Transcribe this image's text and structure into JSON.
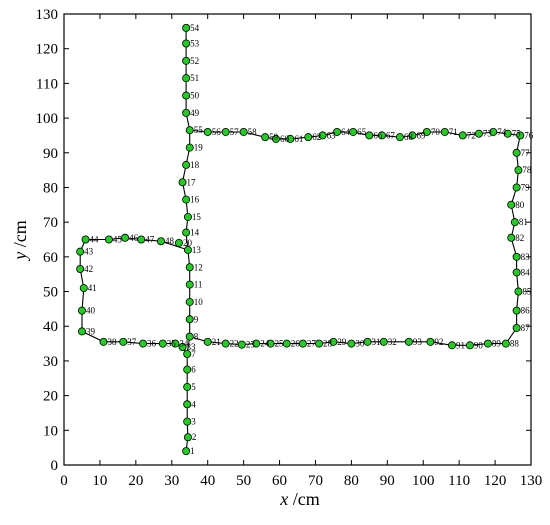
{
  "colors": {
    "point_fill": "#22cc22",
    "point_stroke": "#000000",
    "line": "#000000",
    "frame": "#000000"
  },
  "chart_data": {
    "type": "scatter",
    "title": "",
    "xlabel": {
      "var": "x",
      "unit": " /cm"
    },
    "ylabel": {
      "var": "y",
      "unit": " /cm"
    },
    "xlim": [
      0,
      130
    ],
    "ylim": [
      0,
      130
    ],
    "xticks": [
      "0",
      "10",
      "20",
      "30",
      "40",
      "50",
      "60",
      "70",
      "80",
      "90",
      "100",
      "110",
      "120",
      "130"
    ],
    "yticks": [
      "0",
      "10",
      "20",
      "30",
      "40",
      "50",
      "60",
      "70",
      "80",
      "90",
      "100",
      "110",
      "120",
      "130"
    ],
    "grid": false,
    "legend": "none",
    "points": [
      {
        "id": "1",
        "x": 34,
        "y": 4
      },
      {
        "id": "2",
        "x": 34.5,
        "y": 8
      },
      {
        "id": "3",
        "x": 34.3,
        "y": 12.5
      },
      {
        "id": "4",
        "x": 34.3,
        "y": 17.5
      },
      {
        "id": "5",
        "x": 34.3,
        "y": 22.5
      },
      {
        "id": "6",
        "x": 34.3,
        "y": 27.5
      },
      {
        "id": "7",
        "x": 34.3,
        "y": 32
      },
      {
        "id": "8",
        "x": 35,
        "y": 37
      },
      {
        "id": "9",
        "x": 35,
        "y": 42
      },
      {
        "id": "10",
        "x": 35,
        "y": 47
      },
      {
        "id": "11",
        "x": 35,
        "y": 52
      },
      {
        "id": "12",
        "x": 35,
        "y": 57
      },
      {
        "id": "13",
        "x": 34.5,
        "y": 62
      },
      {
        "id": "14",
        "x": 34,
        "y": 67
      },
      {
        "id": "15",
        "x": 34.5,
        "y": 71.5
      },
      {
        "id": "16",
        "x": 34,
        "y": 76.5
      },
      {
        "id": "17",
        "x": 33,
        "y": 81.5
      },
      {
        "id": "18",
        "x": 34,
        "y": 86.5
      },
      {
        "id": "19",
        "x": 35,
        "y": 91.5
      },
      {
        "id": "20",
        "x": 32,
        "y": 64
      },
      {
        "id": "21",
        "x": 40,
        "y": 35.5
      },
      {
        "id": "22",
        "x": 45,
        "y": 35
      },
      {
        "id": "23",
        "x": 49.5,
        "y": 34.7
      },
      {
        "id": "24",
        "x": 53.5,
        "y": 35
      },
      {
        "id": "25",
        "x": 57.5,
        "y": 35
      },
      {
        "id": "26",
        "x": 62,
        "y": 35
      },
      {
        "id": "27",
        "x": 66.5,
        "y": 35
      },
      {
        "id": "28",
        "x": 71,
        "y": 35
      },
      {
        "id": "29",
        "x": 75,
        "y": 35.5
      },
      {
        "id": "30",
        "x": 80,
        "y": 35
      },
      {
        "id": "31",
        "x": 84.5,
        "y": 35.5
      },
      {
        "id": "32",
        "x": 89,
        "y": 35.5
      },
      {
        "id": "33",
        "x": 33,
        "y": 34
      },
      {
        "id": "34",
        "x": 31,
        "y": 35
      },
      {
        "id": "35",
        "x": 27.5,
        "y": 35
      },
      {
        "id": "36",
        "x": 22,
        "y": 35
      },
      {
        "id": "37",
        "x": 16.5,
        "y": 35.5
      },
      {
        "id": "38",
        "x": 11,
        "y": 35.5
      },
      {
        "id": "39",
        "x": 5,
        "y": 38.5
      },
      {
        "id": "40",
        "x": 5,
        "y": 44.5
      },
      {
        "id": "41",
        "x": 5.5,
        "y": 51
      },
      {
        "id": "42",
        "x": 4.5,
        "y": 56.5
      },
      {
        "id": "43",
        "x": 4.5,
        "y": 61.5
      },
      {
        "id": "44",
        "x": 6,
        "y": 65
      },
      {
        "id": "45",
        "x": 12.5,
        "y": 65
      },
      {
        "id": "46",
        "x": 17,
        "y": 65.5
      },
      {
        "id": "47",
        "x": 21.5,
        "y": 65
      },
      {
        "id": "48",
        "x": 27,
        "y": 64.5
      },
      {
        "id": "49",
        "x": 34,
        "y": 101.5
      },
      {
        "id": "50",
        "x": 34,
        "y": 106.5
      },
      {
        "id": "51",
        "x": 34,
        "y": 111.5
      },
      {
        "id": "52",
        "x": 34,
        "y": 116.5
      },
      {
        "id": "53",
        "x": 34,
        "y": 121.5
      },
      {
        "id": "54",
        "x": 34,
        "y": 126
      },
      {
        "id": "55",
        "x": 35,
        "y": 96.5
      },
      {
        "id": "56",
        "x": 40,
        "y": 96
      },
      {
        "id": "57",
        "x": 45,
        "y": 96
      },
      {
        "id": "58",
        "x": 50,
        "y": 96
      },
      {
        "id": "59",
        "x": 56,
        "y": 94.5
      },
      {
        "id": "60",
        "x": 59,
        "y": 94
      },
      {
        "id": "61",
        "x": 63,
        "y": 94
      },
      {
        "id": "62",
        "x": 68,
        "y": 94.5
      },
      {
        "id": "63",
        "x": 72,
        "y": 95
      },
      {
        "id": "64",
        "x": 76,
        "y": 96
      },
      {
        "id": "65",
        "x": 80.5,
        "y": 96
      },
      {
        "id": "66",
        "x": 85,
        "y": 95
      },
      {
        "id": "67",
        "x": 88.5,
        "y": 95
      },
      {
        "id": "68",
        "x": 93.5,
        "y": 94.5
      },
      {
        "id": "69",
        "x": 97,
        "y": 95
      },
      {
        "id": "70",
        "x": 101,
        "y": 96
      },
      {
        "id": "71",
        "x": 106,
        "y": 96
      },
      {
        "id": "72",
        "x": 111,
        "y": 95
      },
      {
        "id": "73",
        "x": 115.5,
        "y": 95.5
      },
      {
        "id": "74",
        "x": 119.5,
        "y": 96
      },
      {
        "id": "75",
        "x": 123.5,
        "y": 95.5
      },
      {
        "id": "76",
        "x": 127,
        "y": 95
      },
      {
        "id": "77",
        "x": 126,
        "y": 90
      },
      {
        "id": "78",
        "x": 126.5,
        "y": 85
      },
      {
        "id": "79",
        "x": 126,
        "y": 80
      },
      {
        "id": "80",
        "x": 124.5,
        "y": 75
      },
      {
        "id": "81",
        "x": 125.5,
        "y": 70
      },
      {
        "id": "82",
        "x": 124.5,
        "y": 65.5
      },
      {
        "id": "83",
        "x": 126,
        "y": 60
      },
      {
        "id": "84",
        "x": 126,
        "y": 55.5
      },
      {
        "id": "85",
        "x": 126.5,
        "y": 50
      },
      {
        "id": "86",
        "x": 126,
        "y": 44.5
      },
      {
        "id": "87",
        "x": 126,
        "y": 39.5
      },
      {
        "id": "88",
        "x": 123,
        "y": 35
      },
      {
        "id": "89",
        "x": 118,
        "y": 35
      },
      {
        "id": "90",
        "x": 113,
        "y": 34.5
      },
      {
        "id": "91",
        "x": 108,
        "y": 34.5
      },
      {
        "id": "92",
        "x": 102,
        "y": 35.5
      },
      {
        "id": "93",
        "x": 96,
        "y": 35.5
      }
    ],
    "path_order": [
      "1",
      "2",
      "3",
      "4",
      "5",
      "6",
      "7",
      "8",
      "9",
      "10",
      "11",
      "12",
      "13",
      "14",
      "15",
      "16",
      "17",
      "18",
      "19",
      "55",
      "49",
      "50",
      "51",
      "52",
      "53",
      "54"
    ],
    "path_order_loops": [
      [
        "33",
        "34",
        "35",
        "36",
        "37",
        "38",
        "39",
        "40",
        "41",
        "42",
        "43",
        "44",
        "45",
        "46",
        "47",
        "48",
        "13"
      ],
      [
        "8",
        "21",
        "22",
        "23",
        "24",
        "25",
        "26",
        "27",
        "28",
        "29",
        "30",
        "31",
        "32",
        "93",
        "92",
        "91",
        "90",
        "89",
        "88",
        "87",
        "86",
        "85",
        "84",
        "83",
        "82",
        "81",
        "80",
        "79",
        "78",
        "77",
        "76",
        "75",
        "74",
        "73",
        "72",
        "71",
        "70",
        "69",
        "68",
        "67",
        "66",
        "65",
        "64",
        "63",
        "62",
        "61",
        "60",
        "59",
        "58",
        "57",
        "56",
        "55"
      ],
      [
        "7",
        "33"
      ]
    ]
  }
}
